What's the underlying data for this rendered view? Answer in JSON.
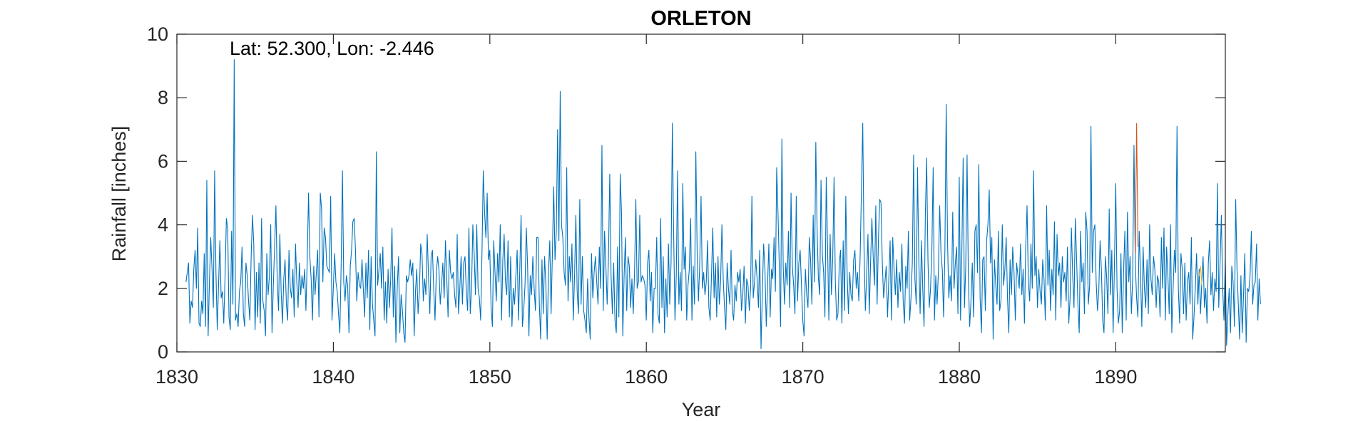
{
  "chart_data": {
    "type": "line",
    "title": "ORLETON",
    "xlabel": "Year",
    "ylabel": "Rainfall [inches]",
    "annotation": "Lat: 52.300, Lon: -2.446",
    "xlim": [
      1830,
      1897
    ],
    "ylim": [
      0,
      10
    ],
    "xticks": [
      1830,
      1840,
      1850,
      1860,
      1870,
      1880,
      1890
    ],
    "yticks": [
      0,
      2,
      4,
      6,
      8,
      10
    ],
    "grid": false,
    "box": true,
    "series": [
      {
        "color": "#0072BD",
        "x_start": 1830.58,
        "x_step": 0.083333,
        "values": [
          2.2,
          2.5,
          2.8,
          0.9,
          1.6,
          1.4,
          2.6,
          3.2,
          2.0,
          3.9,
          0.9,
          0.8,
          1.6,
          1.2,
          3.1,
          0.8,
          5.4,
          0.5,
          2.2,
          3.6,
          2.6,
          1.4,
          5.7,
          2.5,
          0.7,
          2.1,
          3.5,
          1.7,
          1.9,
          0.9,
          2.4,
          4.2,
          3.9,
          1.1,
          0.7,
          3.8,
          1.5,
          9.2,
          1.0,
          1.2,
          0.8,
          1.9,
          2.2,
          3.3,
          1.2,
          0.8,
          2.8,
          2.4,
          1.6,
          1.0,
          3.0,
          4.3,
          3.4,
          0.7,
          2.5,
          1.1,
          2.8,
          0.9,
          4.2,
          1.6,
          1.3,
          0.5,
          3.1,
          1.8,
          2.4,
          4.0,
          0.6,
          2.1,
          3.3,
          4.6,
          2.2,
          1.3,
          3.7,
          1.9,
          0.9,
          2.3,
          2.9,
          1.5,
          1.0,
          3.2,
          2.0,
          1.7,
          2.6,
          1.1,
          3.4,
          2.2,
          1.4,
          2.8,
          1.8,
          2.4,
          2.0,
          2.6,
          1.3,
          2.9,
          5.0,
          3.0,
          2.3,
          1.0,
          2.7,
          1.8,
          2.5,
          3.2,
          1.1,
          5.0,
          4.5,
          2.2,
          3.9,
          3.6,
          2.7,
          2.6,
          2.5,
          4.9,
          1.0,
          2.0,
          3.1,
          2.2,
          1.9,
          1.2,
          0.6,
          2.7,
          5.7,
          2.2,
          1.6,
          2.4,
          2.1,
          0.6,
          2.7,
          3.2,
          4.1,
          4.2,
          3.2,
          1.6,
          2.5,
          2.1,
          2.0,
          2.9,
          2.0,
          1.1,
          2.8,
          1.7,
          3.2,
          0.7,
          3.0,
          1.5,
          1.0,
          0.5,
          6.3,
          2.1,
          2.6,
          3.1,
          2.0,
          3.3,
          1.0,
          2.2,
          0.9,
          2.6,
          1.4,
          2.3,
          3.9,
          1.1,
          2.7,
          0.3,
          2.0,
          3.0,
          0.6,
          1.8,
          1.3,
          0.6,
          0.3,
          2.4,
          2.2,
          2.4,
          2.9,
          2.4,
          2.8,
          0.5,
          1.9,
          2.6,
          1.2,
          1.9,
          3.4,
          3.1,
          1.6,
          2.3,
          1.8,
          3.7,
          2.4,
          1.2,
          3.0,
          3.2,
          2.0,
          1.0,
          2.5,
          3.0,
          2.6,
          1.5,
          2.1,
          2.8,
          1.7,
          3.5,
          2.3,
          1.1,
          3.2,
          2.5,
          2.3,
          2.5,
          1.8,
          1.4,
          3.7,
          1.2,
          2.0,
          3.0,
          1.5,
          2.8,
          3.0,
          1.9,
          1.3,
          3.9,
          1.2,
          2.0,
          4.0,
          3.1,
          1.8,
          4.0,
          2.0,
          1.7,
          1.0,
          3.1,
          5.7,
          4.4,
          3.6,
          5.0,
          2.9,
          3.2,
          1.4,
          0.8,
          3.5,
          2.5,
          1.6,
          3.1,
          2.2,
          4.0,
          1.0,
          2.9,
          3.7,
          2.2,
          1.8,
          3.5,
          1.1,
          3.0,
          0.8,
          2.0,
          1.5,
          2.4,
          3.2,
          1.0,
          2.6,
          4.3,
          0.8,
          1.3,
          2.1,
          3.9,
          2.7,
          0.5,
          2.4,
          1.8,
          3.0,
          2.0,
          1.3,
          3.6,
          3.6,
          1.5,
          0.4,
          2.9,
          1.2,
          3.0,
          2.1,
          0.4,
          2.5,
          3.5,
          1.2,
          3.1,
          5.2,
          2.9,
          3.8,
          7.0,
          3.5,
          8.2,
          4.0,
          3.6,
          2.5,
          2.1,
          5.8,
          1.6,
          3.0,
          2.2,
          3.4,
          1.0,
          2.4,
          4.3,
          1.9,
          1.2,
          4.8,
          1.5,
          3.0,
          1.3,
          1.0,
          0.6,
          2.3,
          1.1,
          0.4,
          3.1,
          1.7,
          2.5,
          3.0,
          2.2,
          1.5,
          3.3,
          2.0,
          6.5,
          1.3,
          3.8,
          2.7,
          1.5,
          3.0,
          5.6,
          2.4,
          1.2,
          2.8,
          1.0,
          0.6,
          3.3,
          1.1,
          5.6,
          4.4,
          0.5,
          2.4,
          3.6,
          1.3,
          3.0,
          2.7,
          1.4,
          2.3,
          1.2,
          2.5,
          4.8,
          2.0,
          2.2,
          4.3,
          2.2,
          2.4,
          2.3,
          2.1,
          1.0,
          2.8,
          3.2,
          1.6,
          2.5,
          0.6,
          2.0,
          2.0,
          3.6,
          1.2,
          0.9,
          4.2,
          1.4,
          3.0,
          0.6,
          2.3,
          1.1,
          3.4,
          1.5,
          2.8,
          7.2,
          3.7,
          1.0,
          2.4,
          5.7,
          1.5,
          2.5,
          1.3,
          5.3,
          2.6,
          3.3,
          1.0,
          2.1,
          2.6,
          4.2,
          1.0,
          2.7,
          1.5,
          6.3,
          3.2,
          1.6,
          2.8,
          4.9,
          2.0,
          2.5,
          1.8,
          2.2,
          3.5,
          1.4,
          1.0,
          2.4,
          3.9,
          1.7,
          2.8,
          1.1,
          3.0,
          1.5,
          2.2,
          4.0,
          2.3,
          1.4,
          0.7,
          2.8,
          2.0,
          1.5,
          3.2,
          1.3,
          1.0,
          2.1,
          1.6,
          2.5,
          2.2,
          2.6,
          1.3,
          1.8,
          2.7,
          0.9,
          2.3,
          2.1,
          1.3,
          2.0,
          4.9,
          1.7,
          2.2,
          2.9,
          2.3,
          1.4,
          3.2,
          0.1,
          1.9,
          3.4,
          2.6,
          0.8,
          2.1,
          3.4,
          1.1,
          2.6,
          2.3,
          3.6,
          1.9,
          5.8,
          4.4,
          2.7,
          0.8,
          6.7,
          2.7,
          1.5,
          2.8,
          2.1,
          3.8,
          1.4,
          5.0,
          2.7,
          2.1,
          1.2,
          4.9,
          1.6,
          2.8,
          3.2,
          2.1,
          1.0,
          0.5,
          2.6,
          1.8,
          1.4,
          3.6,
          2.9,
          1.5,
          4.3,
          2.2,
          6.6,
          3.8,
          2.3,
          1.8,
          5.4,
          3.1,
          2.5,
          1.1,
          5.5,
          3.4,
          1.0,
          3.7,
          1.8,
          3.0,
          5.5,
          2.2,
          1.0,
          1.2,
          2.8,
          3.2,
          0.9,
          3.5,
          1.3,
          4.9,
          2.5,
          1.2,
          2.5,
          1.8,
          1.6,
          2.9,
          3.2,
          2.0,
          2.5,
          1.6,
          3.0,
          5.1,
          7.2,
          3.2,
          1.3,
          2.4,
          3.7,
          1.2,
          2.8,
          4.2,
          3.0,
          2.1,
          4.6,
          1.5,
          3.5,
          4.8,
          4.7,
          2.8,
          1.7,
          2.2,
          2.7,
          1.1,
          2.3,
          3.5,
          1.0,
          3.6,
          2.6,
          1.8,
          2.9,
          1.4,
          2.5,
          1.9,
          3.4,
          1.6,
          0.9,
          2.7,
          2.0,
          3.8,
          1.0,
          1.7,
          2.8,
          6.2,
          2.3,
          1.5,
          5.8,
          2.9,
          1.2,
          3.5,
          2.0,
          0.8,
          4.3,
          6.1,
          2.9,
          1.4,
          2.0,
          3.2,
          5.8,
          1.0,
          2.4,
          1.5,
          2.5,
          4.6,
          3.1,
          2.6,
          1.1,
          3.2,
          7.8,
          3.5,
          1.7,
          2.4,
          1.6,
          4.4,
          2.0,
          2.8,
          3.3,
          1.2,
          5.5,
          1.0,
          3.2,
          6.1,
          1.4,
          2.7,
          6.2,
          2.3,
          0.8,
          1.6,
          2.8,
          1.1,
          3.8,
          4.0,
          2.5,
          5.9,
          1.7,
          0.6,
          2.9,
          3.0,
          1.3,
          3.5,
          4.0,
          5.1,
          2.8,
          3.6,
          0.4,
          2.9,
          2.1,
          1.5,
          3.8,
          1.3,
          1.6,
          4.0,
          2.1,
          2.6,
          3.6,
          1.7,
          0.6,
          2.9,
          1.8,
          3.3,
          2.5,
          1.0,
          2.8,
          2.4,
          2.0,
          3.4,
          1.8,
          2.6,
          0.9,
          3.3,
          4.6,
          2.2,
          1.6,
          3.4,
          2.0,
          5.7,
          2.4,
          3.0,
          1.4,
          2.6,
          1.9,
          1.5,
          2.9,
          2.3,
          1.0,
          4.6,
          2.1,
          3.2,
          1.3,
          2.6,
          1.8,
          4.1,
          1.0,
          3.7,
          2.4,
          2.8,
          1.4,
          3.0,
          2.2,
          2.5,
          1.6,
          3.3,
          0.9,
          1.7,
          3.9,
          2.4,
          1.4,
          4.2,
          2.9,
          1.5,
          0.6,
          3.8,
          2.2,
          2.8,
          1.2,
          4.4,
          3.8,
          1.5,
          2.1,
          7.1,
          2.5,
          3.8,
          4.0,
          2.2,
          1.3,
          1.9,
          3.5,
          2.6,
          1.0,
          0.6,
          3.0,
          2.4,
          1.2,
          4.5,
          1.8,
          3.2,
          0.6,
          2.7,
          5.3,
          2.0,
          0.9,
          1.3,
          3.1,
          0.6,
          2.5,
          3.8,
          1.0,
          4.4,
          2.2,
          3.0,
          1.2,
          2.3,
          6.5,
          2.8,
          1.7,
          1.1,
          3.8,
          2.5,
          0.8,
          3.3,
          2.0,
          1.4,
          2.9,
          1.2,
          4.0,
          2.3,
          1.8,
          3.0,
          2.6,
          1.4,
          2.4,
          2.2,
          1.1,
          3.6,
          2.0,
          3.9,
          1.0,
          3.3,
          2.4,
          1.2,
          4.0,
          0.6,
          2.0,
          3.2,
          2.5,
          7.1,
          2.0,
          0.9,
          3.1,
          2.6,
          1.2,
          2.8,
          1.0,
          2.2,
          2.5,
          1.5,
          3.6,
          0.4,
          1.1,
          2.0,
          3.1,
          1.5,
          2.6,
          1.2,
          2.2,
          3.0,
          1.4,
          2.0,
          0.9,
          2.8,
          3.5,
          1.8,
          2.5,
          1.3,
          2.3,
          1.9,
          5.3,
          1.4,
          2.8,
          4.3,
          2.0,
          1.0,
          2.9,
          0.2,
          1.2,
          2.0,
          0.6,
          2.7,
          2.2,
          0.8,
          4.8,
          2.6,
          1.5,
          0.4,
          2.4,
          0.6,
          1.8,
          3.1,
          0.3,
          2.0,
          1.9,
          2.4,
          3.8,
          1.5,
          2.1,
          2.2,
          3.4,
          1.0,
          2.3,
          1.5
        ]
      }
    ],
    "overlays": [
      {
        "color": "#D95319",
        "x": [
          1891.25,
          1891.33,
          1891.42
        ],
        "values": [
          3.1,
          7.2,
          3.3
        ]
      },
      {
        "color": "#EDB120",
        "x": [
          1895.33,
          1895.42,
          1895.5
        ],
        "values": [
          2.4,
          2.7,
          2.1
        ]
      }
    ]
  }
}
